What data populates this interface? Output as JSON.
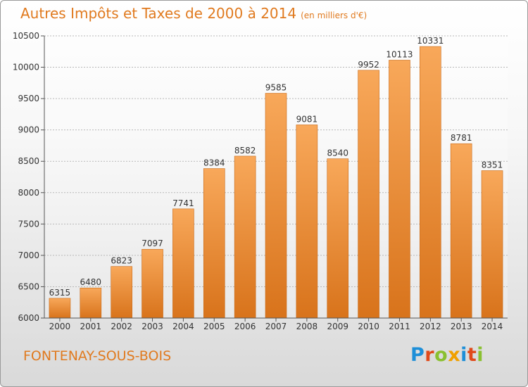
{
  "header": {
    "title": "Autres Impôts et Taxes de 2000 à 2014",
    "unit": "(en milliers d'€)"
  },
  "footer": {
    "city": "FONTENAY-SOUS-BOIS",
    "logo": "Proxiti"
  },
  "colors": {
    "title": "#e07a1f",
    "bar_light": "#f8a85a",
    "bar_dark": "#d8731b",
    "logo": [
      "#1e8fd8",
      "#e04a1a",
      "#8ac030",
      "#f0a000",
      "#1e8fd8",
      "#e04a1a",
      "#8ac030"
    ]
  },
  "chart_data": {
    "type": "bar",
    "categories": [
      "2000",
      "2001",
      "2002",
      "2003",
      "2004",
      "2005",
      "2006",
      "2007",
      "2008",
      "2009",
      "2010",
      "2011",
      "2012",
      "2013",
      "2014"
    ],
    "values": [
      6315,
      6480,
      6823,
      7097,
      7741,
      8384,
      8582,
      9585,
      9081,
      8540,
      9952,
      10113,
      10331,
      8781,
      8351
    ],
    "ylim": [
      6000,
      10500
    ],
    "yticks": [
      6000,
      6500,
      7000,
      7500,
      8000,
      8500,
      9000,
      9500,
      10000,
      10500
    ],
    "grid": true,
    "data_labels": true
  }
}
